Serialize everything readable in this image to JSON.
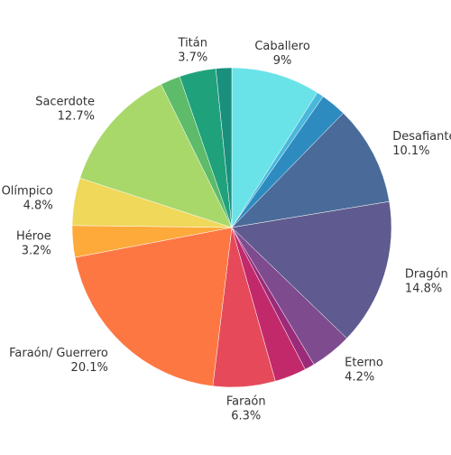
{
  "chart_data": {
    "type": "pie",
    "categories": [
      "Caballero",
      null,
      null,
      "Desafiante",
      "Dragón",
      "Eterno",
      null,
      null,
      "Faraón",
      "Faraón/ Guerrero",
      "Héroe",
      "Olímpico",
      "Sacerdote",
      null,
      "Titán",
      null
    ],
    "values": [
      9,
      0.7,
      2.6,
      10.1,
      14.8,
      4.2,
      1.0,
      3.2,
      6.3,
      20.1,
      3.2,
      4.8,
      12.7,
      2.0,
      3.7,
      1.6
    ],
    "value_labels": [
      "9%",
      null,
      null,
      "10.1%",
      "14.8%",
      "4.2%",
      null,
      null,
      "6.3%",
      "20.1%",
      "3.2%",
      "4.8%",
      "12.7%",
      null,
      "3.7%",
      null
    ],
    "colors": [
      "#6ae3e8",
      "#4ab8dc",
      "#2e8bc0",
      "#4a6b99",
      "#5f5a8f",
      "#7f4b8f",
      "#9b2a79",
      "#c2296b",
      "#e64a5a",
      "#fd7743",
      "#fdaa3b",
      "#efd85a",
      "#a8d86a",
      "#5dbb6a",
      "#1fa27b",
      "#1a8f7d"
    ]
  }
}
